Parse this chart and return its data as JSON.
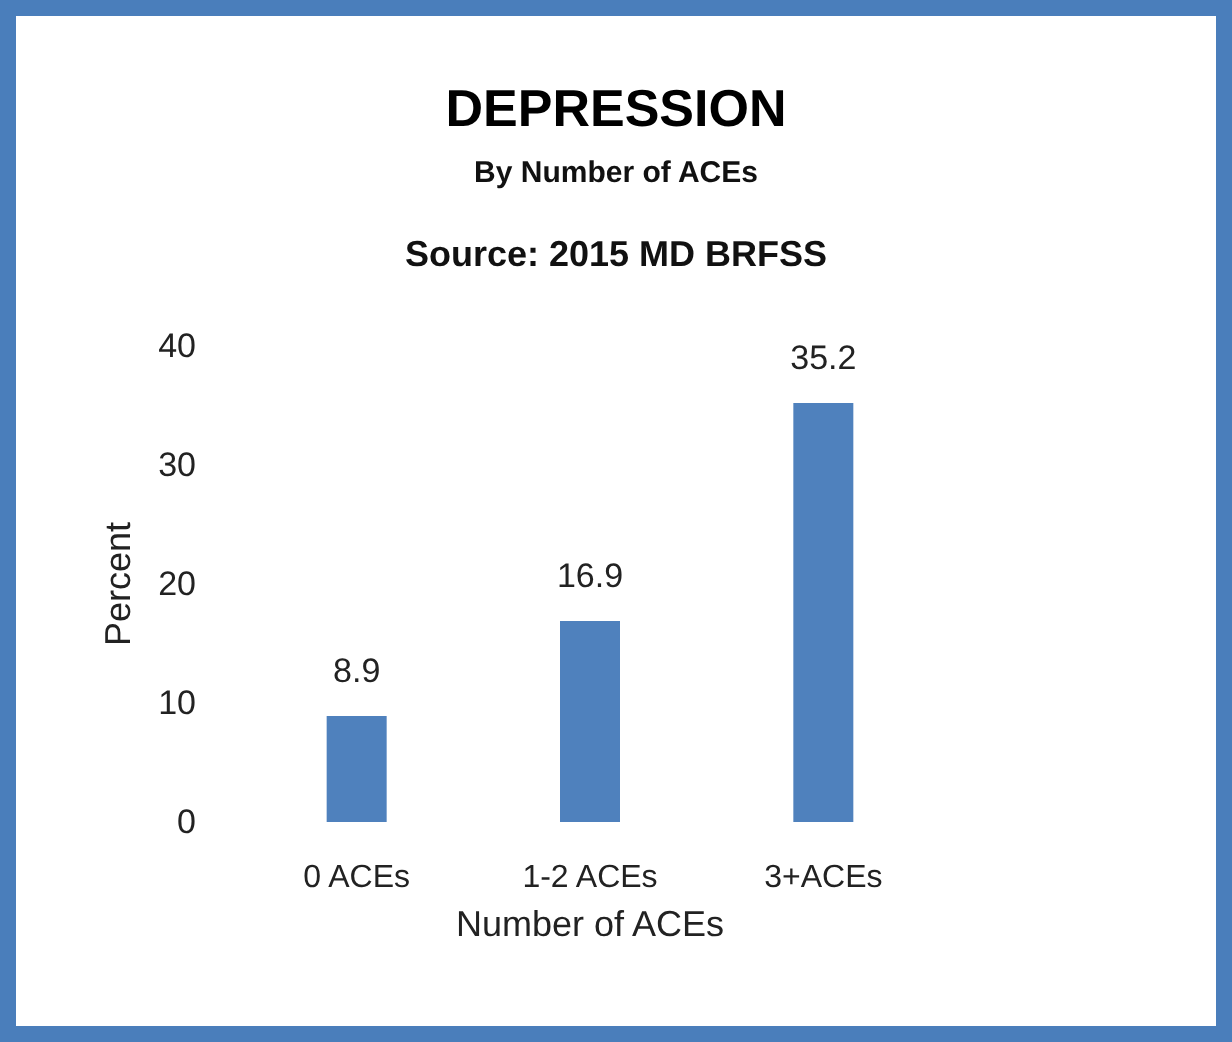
{
  "chart_data": {
    "type": "bar",
    "title": "DEPRESSION",
    "subtitle": "By Number of ACEs",
    "annotations": [
      "Source: 2015 MD BRFSS"
    ],
    "xlabel": "Number of ACEs",
    "ylabel": "Percent",
    "categories": [
      "0 ACEs",
      "1-2 ACEs",
      "3+ACEs"
    ],
    "values": [
      8.9,
      16.9,
      35.2
    ],
    "color": "#4f81bd",
    "data_labels": true,
    "ylim": [
      0,
      40
    ],
    "yticks": [
      0,
      10,
      20,
      30,
      40
    ]
  }
}
